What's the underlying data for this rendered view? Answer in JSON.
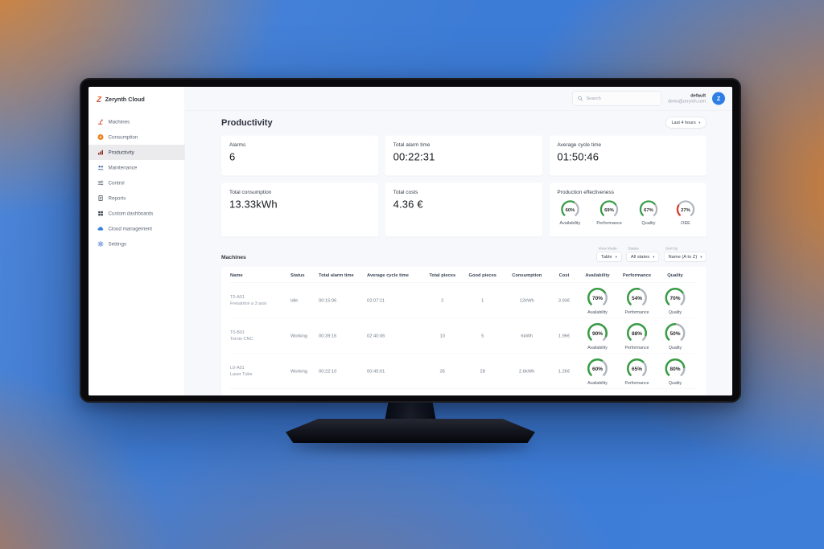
{
  "colors": {
    "accent_blue": "#2e7ee5",
    "gauge_green": "#379d44",
    "gauge_red": "#dc392a",
    "background_blue": "#3d7cd6",
    "background_orange": "#dd812e"
  },
  "app": {
    "sidebar": {
      "brand": "Zerynth Cloud",
      "items": [
        {
          "label": "Machines",
          "icon": "machines-icon"
        },
        {
          "label": "Consumption",
          "icon": "consumption-icon"
        },
        {
          "label": "Productivity",
          "icon": "productivity-icon",
          "active": true
        },
        {
          "label": "Maintenance",
          "icon": "maintenance-icon"
        },
        {
          "label": "Control",
          "icon": "control-icon"
        },
        {
          "label": "Reports",
          "icon": "reports-icon"
        },
        {
          "label": "Custom dashboards",
          "icon": "dashboards-icon"
        },
        {
          "label": "Cloud management",
          "icon": "cloud-icon"
        },
        {
          "label": "Settings",
          "icon": "settings-icon"
        }
      ]
    },
    "topbar": {
      "search_placeholder": "Search",
      "account_name": "default",
      "account_email": "demo@zerynth.com",
      "avatar_letter": "Z"
    },
    "page": {
      "title": "Productivity",
      "time_range": "Last 4 hours"
    },
    "stats": {
      "alarms": {
        "label": "Alarms",
        "value": "6"
      },
      "total_alarm_time": {
        "label": "Total alarm time",
        "value": "00:22:31"
      },
      "average_cycle_time": {
        "label": "Average cycle time",
        "value": "01:50:46"
      },
      "total_consumption": {
        "label": "Total consumption",
        "value": "13.33kWh"
      },
      "total_costs": {
        "label": "Total costs",
        "value": "4.36 €"
      },
      "production_effectiveness": {
        "label": "Production effectiveness",
        "gauges": [
          {
            "label": "Availability",
            "value": 60,
            "color": "#379d44"
          },
          {
            "label": "Performance",
            "value": 69,
            "color": "#379d44"
          },
          {
            "label": "Quality",
            "value": 67,
            "color": "#379d44"
          },
          {
            "label": "OEE",
            "value": 27,
            "color": "#dc392a"
          }
        ]
      }
    },
    "machines": {
      "title": "Machines",
      "controls": [
        {
          "label": "View Mode",
          "value": "Table"
        },
        {
          "label": "Status",
          "value": "All states"
        },
        {
          "label": "Sort by",
          "value": "Name (A to Z)"
        }
      ],
      "columns": [
        "Name",
        "Status",
        "Total alarm time",
        "Average cycle time",
        "Total pieces",
        "Good pieces",
        "Consumption",
        "Cost",
        "Availability",
        "Performance",
        "Quality"
      ],
      "gauge_labels": [
        "Availability",
        "Performance",
        "Quality"
      ],
      "rows": [
        {
          "code": "T0-A01",
          "name": "Fresatrice a 3 assi",
          "status": "Idle",
          "total_alarm_time": "00:15:06",
          "average_cycle_time": "02:07:11",
          "total_pieces": "2",
          "good_pieces": "1",
          "consumption": "12kWh",
          "cost": "3.93€",
          "availability": {
            "value": 70,
            "color": "#379d44"
          },
          "performance": {
            "value": 54,
            "color": "#379d44"
          },
          "quality": {
            "value": 70,
            "color": "#379d44"
          }
        },
        {
          "code": "T0-B01",
          "name": "Tornio CNC",
          "status": "Working",
          "total_alarm_time": "00:39:16",
          "average_cycle_time": "02:40:06",
          "total_pieces": "10",
          "good_pieces": "5",
          "consumption": "6kWh",
          "cost": "1.96€",
          "availability": {
            "value": 90,
            "color": "#379d44"
          },
          "performance": {
            "value": 88,
            "color": "#379d44"
          },
          "quality": {
            "value": 50,
            "color": "#379d44"
          }
        },
        {
          "code": "L0-A01",
          "name": "Laser Tube",
          "status": "Working",
          "total_alarm_time": "00:22:10",
          "average_cycle_time": "00:45:01",
          "total_pieces": "35",
          "good_pieces": "28",
          "consumption": "2.6kWh",
          "cost": "1.26€",
          "availability": {
            "value": 60,
            "color": "#379d44"
          },
          "performance": {
            "value": 65,
            "color": "#379d44"
          },
          "quality": {
            "value": 80,
            "color": "#379d44"
          }
        }
      ]
    }
  }
}
